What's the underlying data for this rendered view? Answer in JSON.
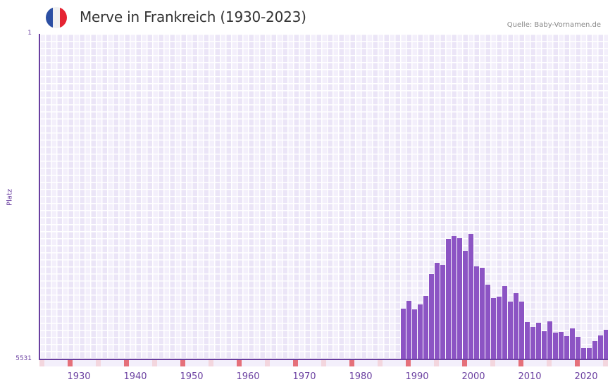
{
  "header": {
    "title": "Merve in Frankreich (1930-2023)",
    "source": "Quelle: Baby-Vornamen.de",
    "flag": {
      "icon": "france-flag-icon",
      "colors": [
        "#2c4fa3",
        "#f1f1f1",
        "#e52433"
      ]
    }
  },
  "colors": {
    "bar": "#8c54c4",
    "axis": "#6a3fa0",
    "plot_bg": "#f3effb",
    "decade_marker": "#e5707a",
    "half_decade_marker": "#f3d6de",
    "future_shade": "#e2dcec"
  },
  "axes": {
    "ylabel": "Platz",
    "ytick_top": "1",
    "ytick_bottom": "5531",
    "xticks": [
      "1930",
      "1940",
      "1950",
      "1960",
      "1970",
      "1980",
      "1990",
      "2000",
      "2010",
      "2020"
    ]
  },
  "chart_data": {
    "type": "bar",
    "title": "Merve in Frankreich (1930-2023)",
    "xlabel": "",
    "ylabel": "Platz",
    "y_inverted": true,
    "ylim": [
      1,
      5531
    ],
    "x_range": [
      1923,
      2029
    ],
    "grid": true,
    "legend": null,
    "source": "Quelle: Baby-Vornamen.de",
    "categories": [
      1987,
      1988,
      1989,
      1990,
      1991,
      1992,
      1993,
      1994,
      1995,
      1996,
      1997,
      1998,
      1999,
      2000,
      2001,
      2002,
      2003,
      2004,
      2005,
      2006,
      2007,
      2008,
      2009,
      2010,
      2011,
      2012,
      2013,
      2014,
      2015,
      2016,
      2017,
      2018,
      2019,
      2020,
      2021,
      2022,
      2023
    ],
    "values": [
      4669,
      4537,
      4681,
      4597,
      4454,
      4083,
      3892,
      3927,
      3484,
      3436,
      3472,
      3688,
      3400,
      3951,
      3975,
      4262,
      4490,
      4466,
      4286,
      4549,
      4406,
      4549,
      4897,
      4980,
      4909,
      5052,
      4885,
      5076,
      5064,
      5136,
      5004,
      5148,
      5339,
      5339,
      5220,
      5124,
      5028
    ]
  }
}
